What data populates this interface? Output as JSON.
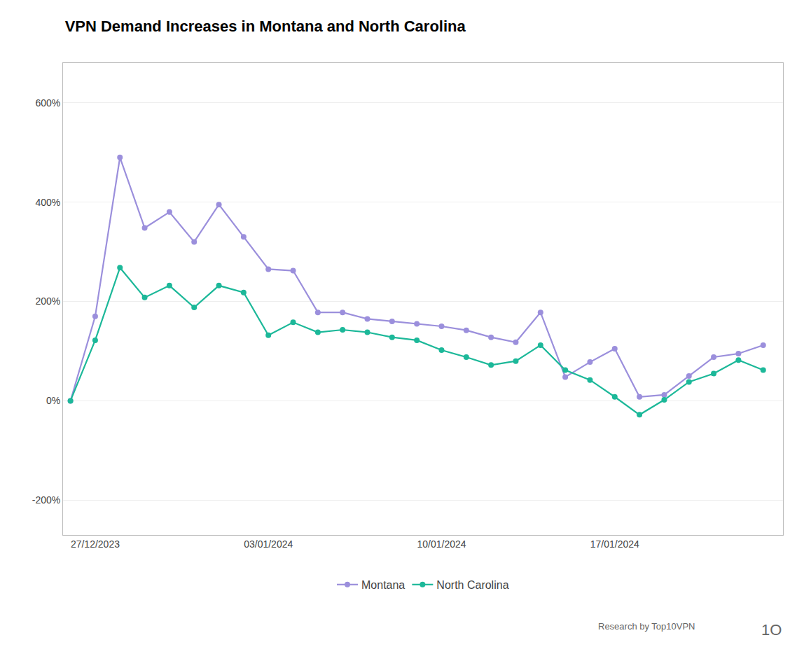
{
  "chart_data": {
    "type": "line",
    "title": "VPN Demand Increases in Montana and North Carolina",
    "x": [
      0,
      1,
      2,
      3,
      4,
      5,
      6,
      7,
      8,
      9,
      10,
      11,
      12,
      13,
      14,
      15,
      16,
      17,
      18,
      19,
      20,
      21,
      22,
      23,
      24,
      25,
      26,
      27,
      28
    ],
    "series": [
      {
        "name": "Montana",
        "color": "#9b8fdc",
        "marker": "circle",
        "values": [
          0,
          170,
          490,
          348,
          380,
          320,
          395,
          330,
          265,
          262,
          178,
          178,
          165,
          160,
          155,
          150,
          142,
          128,
          118,
          178,
          48,
          78,
          105,
          8,
          12,
          50,
          88,
          95,
          112
        ]
      },
      {
        "name": "North Carolina",
        "color": "#1cb899",
        "marker": "circle",
        "values": [
          0,
          122,
          268,
          208,
          232,
          188,
          232,
          218,
          132,
          158,
          138,
          143,
          138,
          128,
          122,
          102,
          88,
          72,
          80,
          112,
          62,
          42,
          8,
          -28,
          2,
          38,
          55,
          82,
          62
        ]
      }
    ],
    "xlim": [
      -0.3,
      28.8
    ],
    "xticks": [
      {
        "value": 1,
        "label": "27/12/2023"
      },
      {
        "value": 8,
        "label": "03/01/2024"
      },
      {
        "value": 15,
        "label": "10/01/2024"
      },
      {
        "value": 22,
        "label": "17/01/2024"
      }
    ],
    "ylim": [
      -270,
      680
    ],
    "yticks": [
      {
        "value": -200,
        "label": "-200%"
      },
      {
        "value": 0,
        "label": "0%"
      },
      {
        "value": 200,
        "label": "200%"
      },
      {
        "value": 400,
        "label": "400%"
      },
      {
        "value": 600,
        "label": "600%"
      }
    ],
    "grid": true,
    "legend": "bottom",
    "annotations": [
      "Research by Top10VPN",
      "1O"
    ]
  }
}
